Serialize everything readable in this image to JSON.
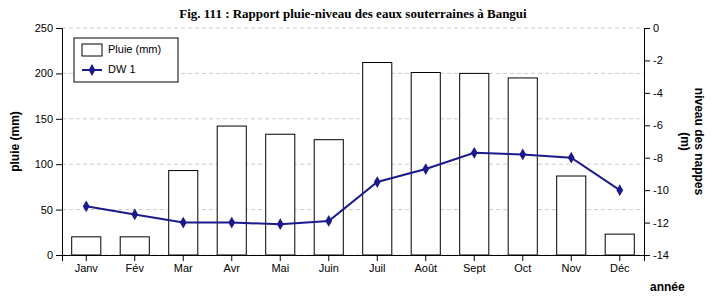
{
  "chart_data": {
    "type": "bar",
    "title": "Fig. 111 : Rapport pluie-niveau des eaux souterraines à Bangui",
    "xlabel": "année",
    "ylabel": "pluie (mm)",
    "y2label": "niveau des nappes\n(m)",
    "categories": [
      "Janv",
      "Fév",
      "Mar",
      "Avr",
      "Mai",
      "Juin",
      "Juil",
      "Août",
      "Sept",
      "Oct",
      "Nov",
      "Déc"
    ],
    "series": [
      {
        "name": "Pluie (mm)",
        "type": "bar",
        "color": "#ffffff",
        "values": [
          20,
          20,
          93,
          142,
          133,
          127,
          212,
          201,
          200,
          195,
          87,
          23
        ]
      },
      {
        "name": "DW 1",
        "type": "line",
        "axis": "y2",
        "color": "#1a1a8c",
        "marker": "diamond",
        "values": [
          -11.0,
          -11.5,
          -12.0,
          -12.0,
          -12.1,
          -11.9,
          -9.5,
          -8.7,
          -7.7,
          -7.8,
          -8.0,
          -10.0
        ]
      }
    ],
    "ylim": [
      0,
      250
    ],
    "yticks": [
      0,
      50,
      100,
      150,
      200,
      250
    ],
    "y2lim": [
      -14,
      0
    ],
    "y2ticks": [
      0,
      -2,
      -4,
      -6,
      -8,
      -10,
      -12,
      -14
    ],
    "grid": true,
    "legend": "upper left"
  }
}
